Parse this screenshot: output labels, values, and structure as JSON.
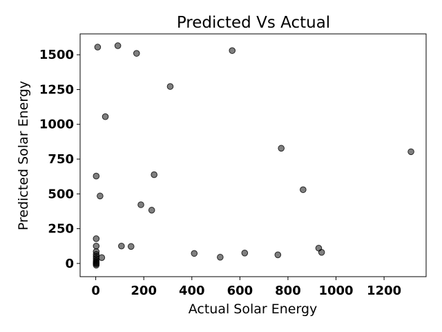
{
  "chart_data": {
    "type": "scatter",
    "title": "Predicted Vs Actual",
    "xlabel": "Actual Solar Energy",
    "ylabel": "Predicted Solar Energy",
    "xlim": [
      -65,
      1375
    ],
    "ylim": [
      -95,
      1650
    ],
    "xticks": [
      0,
      200,
      400,
      600,
      800,
      1000,
      1200
    ],
    "yticks": [
      0,
      250,
      500,
      750,
      1000,
      1250,
      1500
    ],
    "grid": false,
    "marker_color": "#000000",
    "points": [
      {
        "x": 8,
        "y": 1555
      },
      {
        "x": 92,
        "y": 1565
      },
      {
        "x": 170,
        "y": 1510
      },
      {
        "x": 568,
        "y": 1530
      },
      {
        "x": 310,
        "y": 1272
      },
      {
        "x": 40,
        "y": 1055
      },
      {
        "x": 772,
        "y": 828
      },
      {
        "x": 1312,
        "y": 803
      },
      {
        "x": 2,
        "y": 628
      },
      {
        "x": 243,
        "y": 638
      },
      {
        "x": 863,
        "y": 530
      },
      {
        "x": 18,
        "y": 485
      },
      {
        "x": 188,
        "y": 422
      },
      {
        "x": 233,
        "y": 383
      },
      {
        "x": 2,
        "y": 178
      },
      {
        "x": 2,
        "y": 125
      },
      {
        "x": 107,
        "y": 125
      },
      {
        "x": 147,
        "y": 122
      },
      {
        "x": 928,
        "y": 110
      },
      {
        "x": 940,
        "y": 80
      },
      {
        "x": 410,
        "y": 72
      },
      {
        "x": 620,
        "y": 75
      },
      {
        "x": 758,
        "y": 62
      },
      {
        "x": 518,
        "y": 45
      },
      {
        "x": 25,
        "y": 42
      },
      {
        "x": 2,
        "y": 85
      },
      {
        "x": 2,
        "y": 65
      },
      {
        "x": 2,
        "y": 50
      },
      {
        "x": 2,
        "y": 35
      },
      {
        "x": 2,
        "y": 20
      },
      {
        "x": 2,
        "y": 10
      },
      {
        "x": 2,
        "y": 3
      },
      {
        "x": 2,
        "y": -3
      },
      {
        "x": 2,
        "y": -12
      }
    ]
  }
}
